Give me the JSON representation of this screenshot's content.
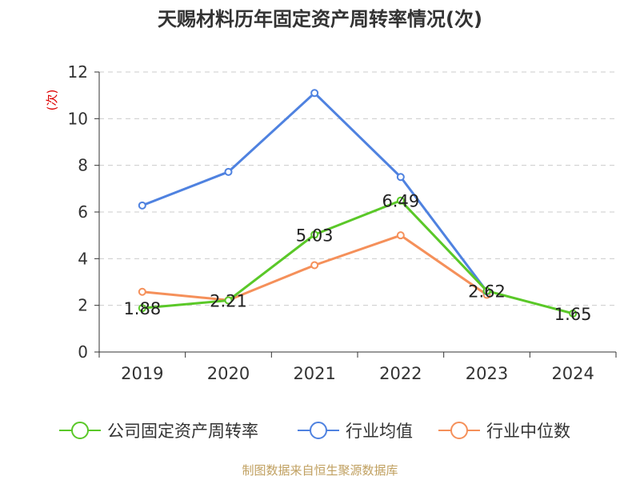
{
  "chart_data": {
    "type": "line",
    "title": "天赐材料历年固定资产周转率情况(次)",
    "ylabel": "(次)",
    "xlabel": "",
    "ylim": [
      0,
      12
    ],
    "yticks": [
      0,
      2,
      4,
      6,
      8,
      10,
      12
    ],
    "categories": [
      "2019",
      "2020",
      "2021",
      "2022",
      "2023",
      "2024"
    ],
    "series": [
      {
        "name": "公司固定资产周转率",
        "color": "#5ac828",
        "values": [
          1.88,
          2.21,
          5.03,
          6.49,
          2.62,
          1.65
        ],
        "labels": [
          "1.88",
          "2.21",
          "5.03",
          "6.49",
          "2.62",
          "1.65"
        ]
      },
      {
        "name": "行业均值",
        "color": "#4f82e0",
        "values": [
          6.28,
          7.72,
          11.1,
          7.5,
          2.6,
          null
        ]
      },
      {
        "name": "行业中位数",
        "color": "#f5905a",
        "values": [
          2.58,
          2.22,
          3.72,
          5.0,
          2.45,
          null
        ]
      }
    ],
    "grid": true,
    "legend_position": "bottom"
  },
  "source": "制图数据来自恒生聚源数据库"
}
